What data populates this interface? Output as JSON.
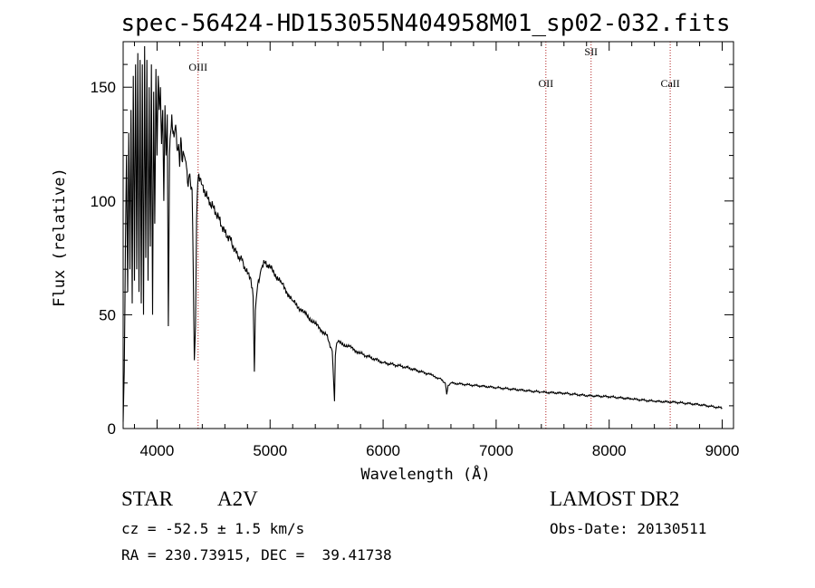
{
  "chart_data": {
    "type": "line",
    "title": "spec-56424-HD153055N404958M01_sp02-032.fits",
    "xlabel": "Wavelength (Å)",
    "ylabel": "Flux (relative)",
    "xlim": [
      3700,
      9100
    ],
    "ylim": [
      0,
      170
    ],
    "xticks": [
      4000,
      5000,
      6000,
      7000,
      8000,
      9000
    ],
    "yticks": [
      0,
      50,
      100,
      150
    ],
    "grid": false,
    "series": [
      {
        "x": [
          3700,
          3710,
          3720,
          3730,
          3740,
          3750,
          3760,
          3770,
          3780,
          3790,
          3800,
          3810,
          3820,
          3830,
          3840,
          3850,
          3860,
          3870,
          3880,
          3890,
          3900,
          3910,
          3920,
          3930,
          3940,
          3950,
          3960,
          3970,
          3980,
          3990,
          4000,
          4010,
          4020,
          4030,
          4040,
          4050,
          4060,
          4070,
          4080,
          4090,
          4100,
          4110,
          4120,
          4130,
          4140,
          4150,
          4160,
          4170,
          4180,
          4190,
          4200,
          4210,
          4220,
          4230,
          4240,
          4250,
          4260,
          4270,
          4280,
          4290,
          4300,
          4310,
          4320,
          4330,
          4340,
          4350,
          4360,
          4370,
          4380,
          4400,
          4450,
          4500,
          4550,
          4600,
          4650,
          4700,
          4750,
          4800,
          4830,
          4850,
          4861,
          4870,
          4890,
          4920,
          4950,
          5000,
          5100,
          5200,
          5300,
          5400,
          5500,
          5550,
          5570,
          5577,
          5585,
          5600,
          5700,
          5800,
          6000,
          6200,
          6400,
          6500,
          6550,
          6563,
          6575,
          6600,
          6800,
          7000,
          7200,
          7400,
          7600,
          7800,
          8000,
          8200,
          8400,
          8600,
          8800,
          9000
        ],
        "y": [
          3,
          25,
          80,
          120,
          60,
          130,
          70,
          140,
          55,
          155,
          65,
          160,
          70,
          165,
          60,
          162,
          55,
          160,
          50,
          168,
          75,
          162,
          65,
          150,
          80,
          160,
          50,
          148,
          90,
          158,
          120,
          155,
          140,
          150,
          125,
          140,
          100,
          142,
          120,
          138,
          45,
          120,
          130,
          138,
          130,
          128,
          132,
          130,
          122,
          125,
          115,
          128,
          118,
          122,
          120,
          118,
          115,
          108,
          110,
          112,
          105,
          105,
          70,
          30,
          45,
          92,
          108,
          112,
          110,
          107,
          101,
          97,
          92,
          86,
          83,
          77,
          74,
          68,
          66,
          58,
          25,
          52,
          63,
          70,
          73,
          71,
          64,
          56,
          51,
          46,
          41,
          34,
          12,
          32,
          36,
          38,
          36,
          33,
          29,
          27,
          24,
          22,
          20,
          15,
          19,
          20,
          19,
          18,
          17,
          16,
          15.5,
          14.5,
          14,
          13,
          12,
          11.5,
          10.5,
          9
        ]
      }
    ],
    "lines": [
      {
        "label": "OIII",
        "x": 4363
      },
      {
        "label": "OII",
        "x": 7440
      },
      {
        "label": "SII",
        "x": 7840
      },
      {
        "label": "CaII",
        "x": 8540
      }
    ]
  },
  "info": {
    "object_type": "STAR",
    "subclass": "A2V",
    "survey": "LAMOST DR2",
    "redshift": "cz = -52.5 ± 1.5 km/s",
    "obs_date": "Obs-Date: 20130511",
    "coords": "RA = 230.73915, DEC =  39.41738"
  },
  "colors": {
    "spectrum": "#000000",
    "line_marker": "#b22222",
    "axes": "#000000"
  }
}
